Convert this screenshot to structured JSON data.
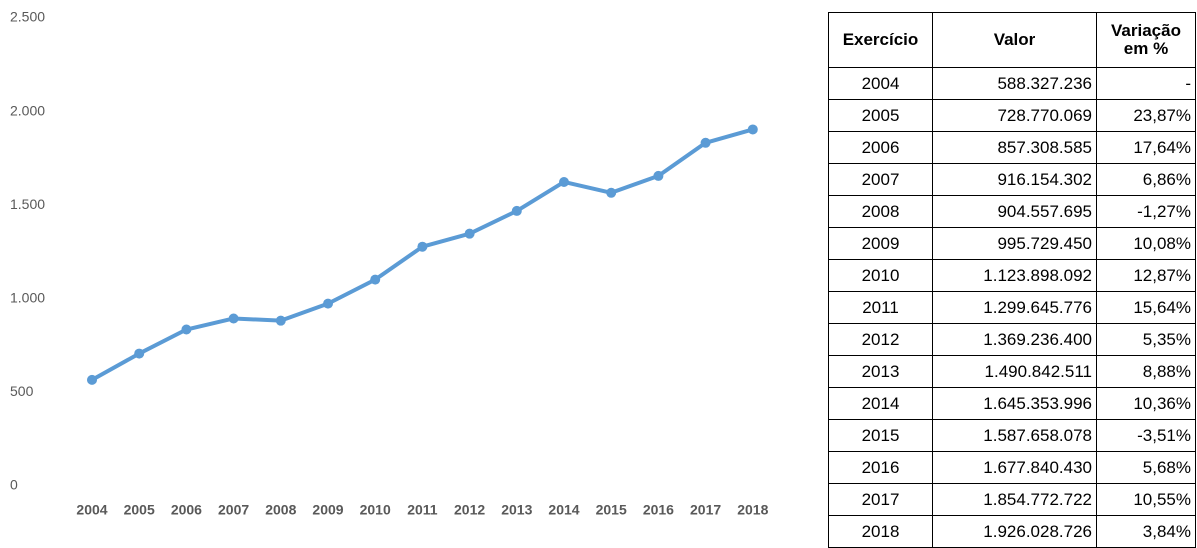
{
  "chart_data": {
    "type": "line",
    "categories": [
      "2004",
      "2005",
      "2006",
      "2007",
      "2008",
      "2009",
      "2010",
      "2011",
      "2012",
      "2013",
      "2014",
      "2015",
      "2016",
      "2017",
      "2018"
    ],
    "series": [
      {
        "name": "Valor",
        "color": "#5b9bd5",
        "values": [
          588.3,
          728.8,
          857.3,
          916.2,
          904.6,
          995.7,
          1123.9,
          1299.6,
          1369.2,
          1490.8,
          1645.4,
          1587.7,
          1677.8,
          1854.8,
          1926.0
        ]
      }
    ],
    "ylim": [
      0,
      2500
    ],
    "yticks": [
      0,
      500,
      {
        "value": 1000,
        "label": "1.000"
      },
      {
        "value": 1500,
        "label": "1.500"
      },
      {
        "value": 2000,
        "label": "2.000"
      },
      {
        "value": 2500,
        "label": "2.500"
      }
    ],
    "grid": false
  },
  "table": {
    "header": [
      "Exercício",
      "Valor",
      "Variação em %"
    ],
    "rows": [
      [
        "2004",
        "588.327.236",
        "-"
      ],
      [
        "2005",
        "728.770.069",
        "23,87%"
      ],
      [
        "2006",
        "857.308.585",
        "17,64%"
      ],
      [
        "2007",
        "916.154.302",
        "6,86%"
      ],
      [
        "2008",
        "904.557.695",
        "-1,27%"
      ],
      [
        "2009",
        "995.729.450",
        "10,08%"
      ],
      [
        "2010",
        "1.123.898.092",
        "12,87%"
      ],
      [
        "2011",
        "1.299.645.776",
        "15,64%"
      ],
      [
        "2012",
        "1.369.236.400",
        "5,35%"
      ],
      [
        "2013",
        "1.490.842.511",
        "8,88%"
      ],
      [
        "2014",
        "1.645.353.996",
        "10,36%"
      ],
      [
        "2015",
        "1.587.658.078",
        "-3,51%"
      ],
      [
        "2016",
        "1.677.840.430",
        "5,68%"
      ],
      [
        "2017",
        "1.854.772.722",
        "10,55%"
      ],
      [
        "2018",
        "1.926.028.726",
        "3,84%"
      ]
    ]
  }
}
